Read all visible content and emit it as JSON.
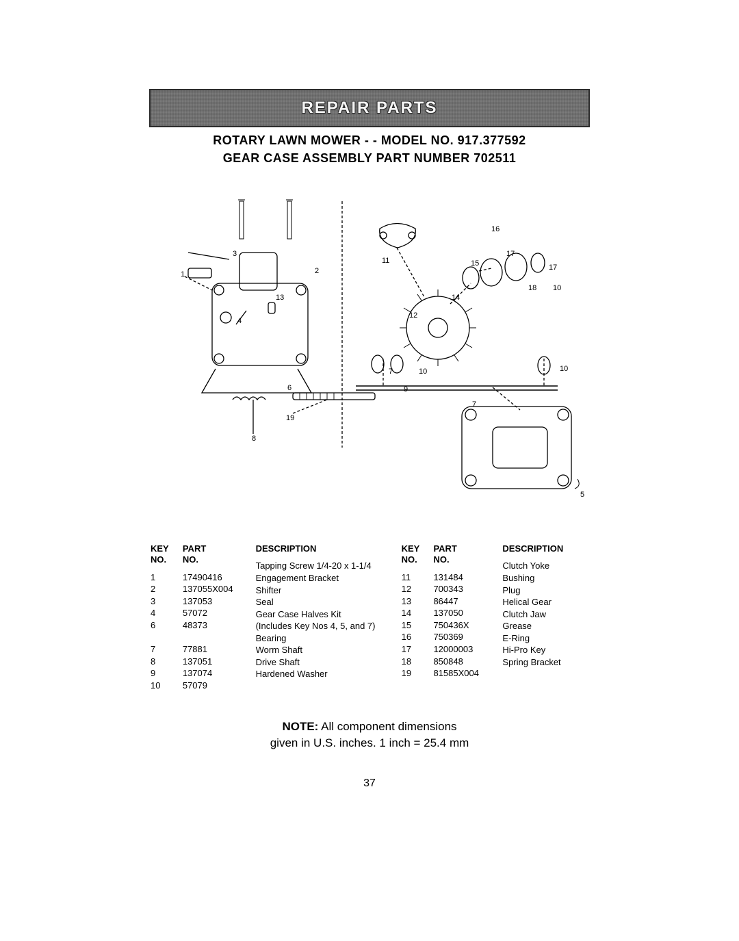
{
  "banner": {
    "title": "REPAIR PARTS"
  },
  "subhead": {
    "line1": "ROTARY LAWN MOWER - - MODEL NO. 917.377592",
    "line2": "GEAR CASE ASSEMBLY PART NUMBER 702511"
  },
  "table": {
    "headers": {
      "key": "KEY\nNO.",
      "part": "PART\nNO.",
      "desc": "DESCRIPTION"
    },
    "left": [
      {
        "key": "1",
        "part": "17490416",
        "desc": "Tapping Screw  1/4-20 x 1-1/4"
      },
      {
        "key": "2",
        "part": "137055X004",
        "desc": "Engagement Bracket"
      },
      {
        "key": "3",
        "part": "137053",
        "desc": "Shifter"
      },
      {
        "key": "4",
        "part": "57072",
        "desc": "Seal"
      },
      {
        "key": "6",
        "part": "48373",
        "desc": "Gear Case Halves Kit\n(Includes Key Nos 4, 5, and 7)"
      },
      {
        "key": "7",
        "part": "77881",
        "desc": "Bearing"
      },
      {
        "key": "8",
        "part": "137051",
        "desc": "Worm Shaft"
      },
      {
        "key": "9",
        "part": "137074",
        "desc": "Drive Shaft"
      },
      {
        "key": "10",
        "part": "57079",
        "desc": "Hardened Washer"
      }
    ],
    "right": [
      {
        "key": "11",
        "part": "131484",
        "desc": "Clutch Yoke"
      },
      {
        "key": "12",
        "part": "700343",
        "desc": "Bushing"
      },
      {
        "key": "13",
        "part": "86447",
        "desc": "Plug"
      },
      {
        "key": "14",
        "part": "137050",
        "desc": "Helical Gear"
      },
      {
        "key": "15",
        "part": "750436X",
        "desc": "Clutch Jaw"
      },
      {
        "key": "16",
        "part": "750369",
        "desc": "Grease"
      },
      {
        "key": "17",
        "part": "12000003",
        "desc": "E-Ring"
      },
      {
        "key": "18",
        "part": "850848",
        "desc": "Hi-Pro Key"
      },
      {
        "key": "19",
        "part": "81585X004",
        "desc": "Spring Bracket"
      }
    ],
    "col_widths_left": {
      "key": 34,
      "part": 96,
      "desc": 206
    },
    "col_widths_right": {
      "key": 34,
      "part": 90,
      "desc": 130
    }
  },
  "note": {
    "label": "NOTE:",
    "line1_rest": "  All component dimensions",
    "line2": "given in U.S. inches.  1 inch = 25.4 mm"
  },
  "page_number": "37",
  "diagram_labels": {
    "l1": "1",
    "l2": "2",
    "l3": "3",
    "l4": "4",
    "l5": "5",
    "l6": "6",
    "l7": "7",
    "l7b": "7",
    "l8": "8",
    "l9": "9",
    "l10": "10",
    "l10b": "10",
    "l10c": "10",
    "l11": "11",
    "l12": "12",
    "l13": "13",
    "l14": "14",
    "l15": "15",
    "l16": "16",
    "l17": "17",
    "l17b": "17",
    "l18": "18",
    "l19": "19"
  },
  "colors": {
    "stroke": "#000000",
    "dash": "4 3"
  }
}
